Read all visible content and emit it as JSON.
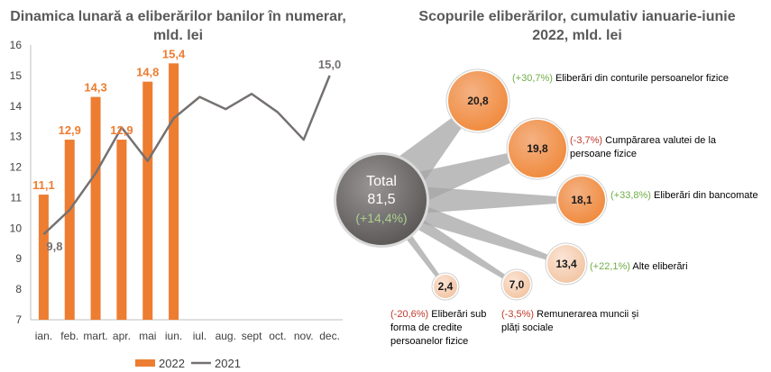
{
  "left_chart": {
    "title": "Dinamica lunară a eliberărilor banilor în numerar, mld. lei",
    "chart_data": {
      "type": "bar",
      "categories": [
        "ian.",
        "feb.",
        "mart.",
        "apr.",
        "mai",
        "iun.",
        "iul.",
        "aug.",
        "sept",
        "oct.",
        "nov.",
        "dec."
      ],
      "ylim": [
        7,
        16
      ],
      "yticks": [
        "7",
        "8",
        "9",
        "10",
        "11",
        "12",
        "13",
        "14",
        "15",
        "16"
      ],
      "grid": false,
      "legend_position": "bottom",
      "series": [
        {
          "name": "2022",
          "kind": "bar",
          "color": "#ed7d31",
          "values": [
            11.1,
            12.9,
            14.3,
            12.9,
            14.8,
            15.4,
            null,
            null,
            null,
            null,
            null,
            null
          ],
          "labels": [
            "11,1",
            "12,9",
            "14,3",
            "12,9",
            "14,8",
            "15,4"
          ]
        },
        {
          "name": "2021",
          "kind": "line",
          "color": "#767171",
          "values": [
            9.8,
            10.6,
            11.8,
            13.3,
            12.2,
            13.6,
            14.3,
            13.9,
            14.4,
            13.8,
            12.9,
            15.0
          ],
          "point_labels": [
            {
              "index": 0,
              "text": "9,8"
            },
            {
              "index": 11,
              "text": "15,0"
            }
          ]
        }
      ]
    }
  },
  "right_chart": {
    "title": "Scopurile eliberărilor, cumulativ ianuarie-iunie 2022, mld. lei",
    "total": {
      "label": "Total",
      "value": "81,5",
      "change": "(+14,4%)"
    },
    "items": [
      {
        "value": "20,8",
        "change": "(+30,7%)",
        "change_sign": "pos",
        "label": "Eliberări din conturile persoanelor fizice"
      },
      {
        "value": "19,8",
        "change": "(-3,7%)",
        "change_sign": "neg",
        "label": "Cumpărarea valutei de la persoane fizice"
      },
      {
        "value": "18,1",
        "change": "(+33,8%)",
        "change_sign": "pos",
        "label": "Eliberări din bancomate"
      },
      {
        "value": "13,4",
        "change": "(+22,1%)",
        "change_sign": "pos",
        "label": "Alte eliberări"
      },
      {
        "value": "7,0",
        "change": "(-3,5%)",
        "change_sign": "neg",
        "label": "Remunerarea muncii și plăți sociale"
      },
      {
        "value": "2,4",
        "change": "(-20,6%)",
        "change_sign": "neg",
        "label": "Eliberări sub forma de credite persoanelor fizice"
      }
    ],
    "colors": {
      "bubble_fill": "#f08a3c",
      "bubble_light": "#f4b183",
      "total_fill": "#767171",
      "funnel": "#a6a6a6"
    }
  }
}
